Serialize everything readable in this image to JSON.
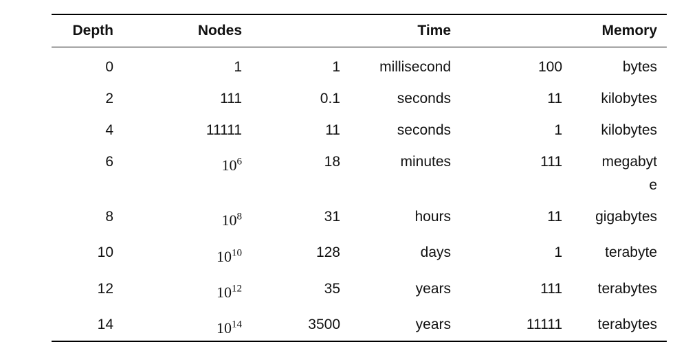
{
  "table": {
    "header": [
      "Depth",
      "Nodes",
      "Time",
      "Memory"
    ],
    "rows": [
      [
        "0",
        "1",
        "1",
        "millisecond",
        "100",
        "bytes"
      ],
      [
        "2",
        "111",
        "0.1",
        "seconds",
        "11",
        "kilobytes"
      ],
      [
        "4",
        "11111",
        "11",
        "seconds",
        "1",
        "kilobytes"
      ],
      [
        "6",
        {
          "base": "10",
          "exponent": "6"
        },
        "18",
        "minutes",
        "111",
        "megabyte"
      ],
      [
        "8",
        {
          "base": "10",
          "exponent": "8"
        },
        "31",
        "hours",
        "11",
        "gigabytes"
      ],
      [
        "10",
        {
          "base": "10",
          "exponent": "10"
        },
        "128",
        "days",
        "1",
        "terabyte"
      ],
      [
        "12",
        {
          "base": "10",
          "exponent": "12"
        },
        "35",
        "years",
        "111",
        "terabytes"
      ],
      [
        "14",
        {
          "base": "10",
          "exponent": "14"
        },
        "3500",
        "years",
        "11111",
        "terabytes"
      ]
    ]
  }
}
